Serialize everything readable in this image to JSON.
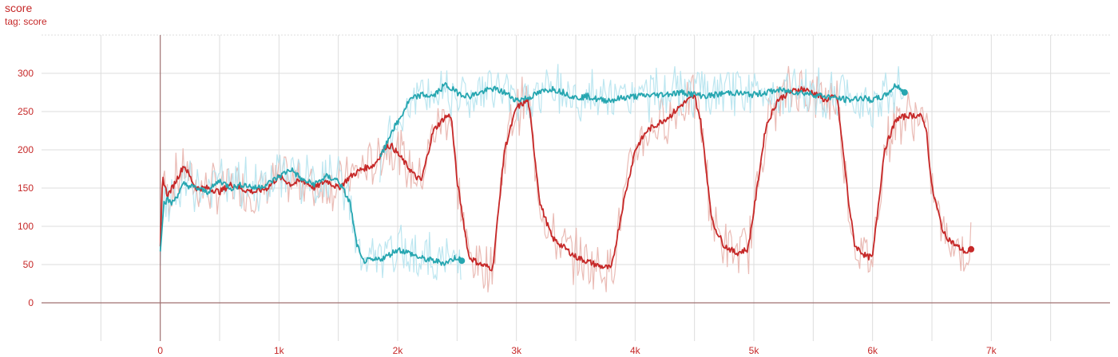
{
  "chart_data": {
    "type": "line",
    "title": "score",
    "subtitle": "tag: score",
    "xlim": [
      -1000,
      8000
    ],
    "ylim": [
      -50,
      350
    ],
    "x_ticks": [
      0,
      1000,
      2000,
      3000,
      4000,
      5000,
      6000,
      7000
    ],
    "x_tick_labels": [
      "0",
      "1k",
      "2k",
      "3k",
      "4k",
      "5k",
      "6k",
      "7k"
    ],
    "y_ticks": [
      0,
      50,
      100,
      150,
      200,
      250,
      300
    ],
    "y_tick_labels": [
      "0",
      "50",
      "100",
      "150",
      "200",
      "250",
      "300"
    ],
    "grid": true,
    "colors": {
      "red": "#c62828",
      "teal": "#26a6b0",
      "red_raw": "#e8b4ad",
      "teal_raw": "#b5e3ee",
      "axis": "#c62828",
      "grid": "#dddddd"
    },
    "series": [
      {
        "color": "#c62828",
        "raw_color": "#e8b4ad",
        "x": [
          0,
          20,
          60,
          100,
          200,
          300,
          400,
          500,
          600,
          700,
          800,
          900,
          1000,
          1100,
          1200,
          1300,
          1400,
          1500,
          1600,
          1700,
          1800,
          1850,
          1900,
          1950,
          2000,
          2100,
          2150,
          2200,
          2300,
          2400,
          2450,
          2500,
          2600,
          2700,
          2800,
          2900,
          3000,
          3100,
          3200,
          3300,
          3500,
          3700,
          3800,
          3900,
          4000,
          4100,
          4200,
          4300,
          4400,
          4500,
          4550,
          4650,
          4750,
          4850,
          4950,
          5000,
          5100,
          5200,
          5300,
          5400,
          5500,
          5600,
          5700,
          5800,
          5850,
          5950,
          6000,
          6100,
          6200,
          6300,
          6400,
          6450,
          6500,
          6600,
          6700,
          6800,
          6830
        ],
        "y": [
          70,
          165,
          140,
          150,
          180,
          150,
          150,
          145,
          155,
          148,
          145,
          150,
          165,
          155,
          160,
          150,
          160,
          150,
          165,
          175,
          180,
          192,
          205,
          205,
          195,
          175,
          165,
          160,
          225,
          243,
          245,
          160,
          60,
          50,
          45,
          200,
          255,
          265,
          130,
          85,
          60,
          48,
          45,
          130,
          200,
          225,
          235,
          245,
          260,
          270,
          240,
          105,
          75,
          65,
          70,
          120,
          230,
          265,
          275,
          280,
          275,
          265,
          270,
          130,
          75,
          60,
          60,
          200,
          240,
          245,
          245,
          230,
          150,
          90,
          75,
          65,
          70
        ]
      },
      {
        "color": "#26a6b0",
        "raw_color": "#b5e3ee",
        "x": [
          0,
          30,
          60,
          100,
          200,
          300,
          400,
          500,
          600,
          700,
          800,
          900,
          1000,
          1100,
          1200,
          1300,
          1400,
          1500,
          1600,
          1650,
          1700,
          1800,
          1900,
          2000,
          2100,
          2200,
          2300,
          2400,
          2500,
          2540
        ],
        "y": [
          70,
          130,
          135,
          130,
          155,
          150,
          145,
          160,
          150,
          155,
          150,
          155,
          165,
          175,
          160,
          155,
          165,
          160,
          130,
          80,
          55,
          55,
          60,
          70,
          65,
          58,
          55,
          52,
          60,
          55
        ]
      },
      {
        "color": "#26a6b0",
        "raw_color": "#b5e3ee",
        "x": [
          1850,
          1900,
          1950,
          2000,
          2050,
          2100,
          2200,
          2300,
          2400,
          2500,
          2600,
          2700,
          2800,
          2900,
          3000,
          3100,
          3200,
          3300,
          3400,
          3500,
          3600,
          3700,
          3800,
          3900,
          4000,
          4200,
          4400,
          4600,
          4800,
          5000,
          5200,
          5400,
          5600,
          5800,
          5900,
          6000,
          6100,
          6200,
          6270
        ],
        "y": [
          190,
          205,
          225,
          235,
          250,
          265,
          272,
          270,
          285,
          275,
          270,
          275,
          280,
          275,
          265,
          268,
          275,
          280,
          275,
          268,
          270,
          265,
          265,
          268,
          270,
          272,
          275,
          270,
          275,
          272,
          278,
          275,
          270,
          265,
          268,
          265,
          270,
          285,
          275
        ]
      }
    ]
  }
}
